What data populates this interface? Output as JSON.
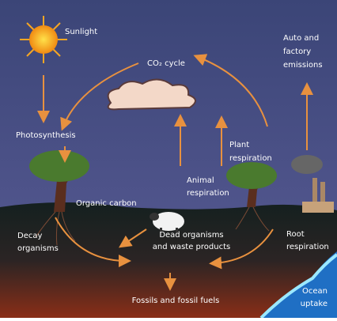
{
  "labels": {
    "sunlight": "Sunlight",
    "co2_cycle": "CO₂ cycle",
    "emissions": [
      "Auto and",
      "factory",
      "emissions"
    ],
    "photosynthesis": "Photosynthesis",
    "plant_respiration": [
      "Plant",
      "respiration"
    ],
    "animal_respiration": [
      "Animal",
      "respiration"
    ],
    "organic_carbon": "Organic carbon",
    "decay_organisms": [
      "Decay",
      "organisms"
    ],
    "dead_organisms": [
      "Dead organisms",
      "and waste products"
    ],
    "root_respiration": [
      "Root",
      "respiration"
    ],
    "ocean_uptake": [
      "Ocean",
      "uptake"
    ],
    "fossils": "Fossils and fossil fuels"
  }
}
